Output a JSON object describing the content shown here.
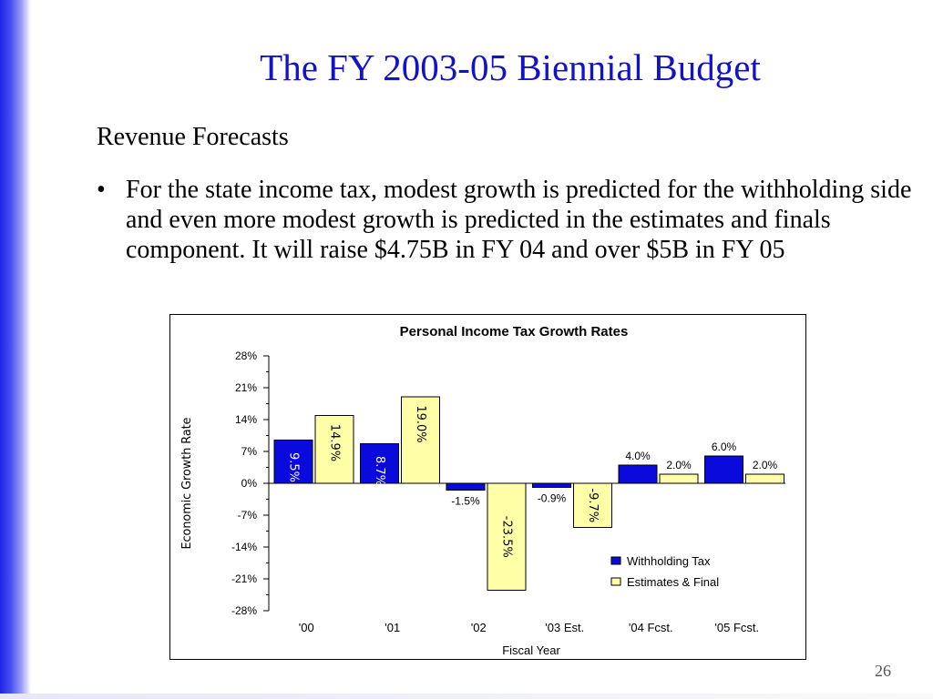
{
  "slide": {
    "title": "The FY 2003-05 Biennial Budget",
    "subheading": "Revenue Forecasts",
    "bullet": "For the state income tax, modest growth is predicted for the withholding side and even more modest growth is predicted in the estimates and finals component.  It will raise $4.75B in FY 04 and over $5B in FY 05",
    "page_number": "26"
  },
  "colors": {
    "accent": "#1212c8",
    "withholding": "#0a0adc",
    "estimates": "#ffffa8"
  },
  "chart_data": {
    "type": "bar",
    "title": "Personal Income Tax Growth Rates",
    "xlabel": "Fiscal Year",
    "ylabel": "Economic Growth Rate",
    "categories": [
      "'00",
      "'01",
      "'02",
      "'03 Est.",
      "'04 Fcst.",
      "'05 Fcst."
    ],
    "ylim": [
      -28,
      28
    ],
    "yticks": [
      28,
      21,
      14,
      7,
      0,
      -7,
      -14,
      -21,
      -28
    ],
    "ytick_labels": [
      "28%",
      "21%",
      "14%",
      "7%",
      "0%",
      "-7%",
      "-14%",
      "-21%",
      "-28%"
    ],
    "series": [
      {
        "name": "Withholding Tax",
        "values": [
          9.5,
          8.7,
          -1.5,
          -0.9,
          4.0,
          6.0
        ],
        "labels": [
          "9.5%",
          "8.7%",
          "-1.5%",
          "-0.9%",
          "4.0%",
          "6.0%"
        ]
      },
      {
        "name": "Estimates & Final",
        "values": [
          14.9,
          19.0,
          -23.5,
          -9.7,
          2.0,
          2.0
        ],
        "labels": [
          "14.9%",
          "19.0%",
          "-23.5%",
          "-9.7%",
          "2.0%",
          "2.0%"
        ]
      }
    ],
    "legend_position": "bottom-right",
    "grid": false
  }
}
